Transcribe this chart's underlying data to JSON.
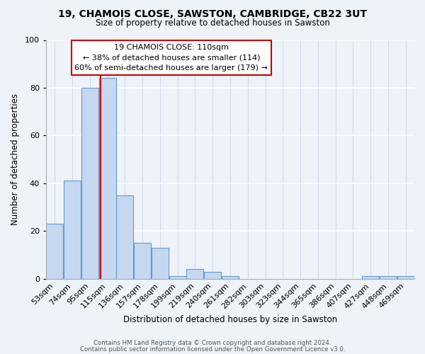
{
  "title": "19, CHAMOIS CLOSE, SAWSTON, CAMBRIDGE, CB22 3UT",
  "subtitle": "Size of property relative to detached houses in Sawston",
  "xlabel": "Distribution of detached houses by size in Sawston",
  "ylabel": "Number of detached properties",
  "bar_labels": [
    "53sqm",
    "74sqm",
    "95sqm",
    "115sqm",
    "136sqm",
    "157sqm",
    "178sqm",
    "199sqm",
    "219sqm",
    "240sqm",
    "261sqm",
    "282sqm",
    "303sqm",
    "323sqm",
    "344sqm",
    "365sqm",
    "386sqm",
    "407sqm",
    "427sqm",
    "448sqm",
    "469sqm"
  ],
  "bar_values": [
    23,
    41,
    80,
    84,
    35,
    15,
    13,
    1,
    4,
    3,
    1,
    0,
    0,
    0,
    0,
    0,
    0,
    0,
    1,
    1,
    1
  ],
  "bar_color": "#c5d8f0",
  "bar_edgecolor": "#6699cc",
  "property_line_x": 3,
  "annotation_title": "19 CHAMOIS CLOSE: 110sqm",
  "annotation_line1": "← 38% of detached houses are smaller (114)",
  "annotation_line2": "60% of semi-detached houses are larger (179) →",
  "annotation_box_facecolor": "#ffffff",
  "annotation_box_edgecolor": "#cc0000",
  "red_line_color": "#cc0000",
  "ylim": [
    0,
    100
  ],
  "background_color": "#eef2f9",
  "grid_color": "#d8e0ee",
  "footer_line1": "Contains HM Land Registry data © Crown copyright and database right 2024.",
  "footer_line2": "Contains public sector information licensed under the Open Government Licence v3.0."
}
